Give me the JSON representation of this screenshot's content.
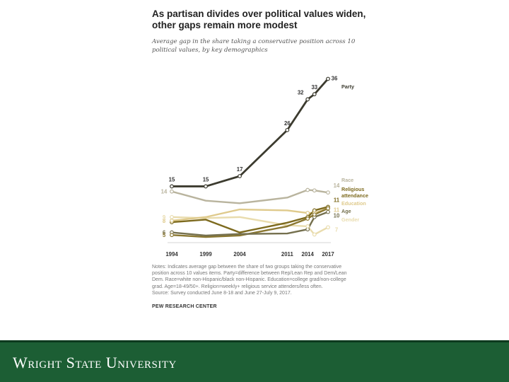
{
  "figure": {
    "title_line1": "As partisan divides over political values widen,",
    "title_line2": "other gaps remain more modest",
    "subtitle": "Average gap in the share taking a conservative position across 10 political values, by key demographics",
    "notes_line1": "Notes: Indicates average gap between the share of two groups taking the conservative",
    "notes_line2": "position across 10 values items. Party=difference between Rep/Lean Rep and Dem/Lean",
    "notes_line3": "Dem. Race=white non-Hispanic/black non-Hispanic. Education=college grad/non-college",
    "notes_line4": "grad. Age=18-49/50+. Religion=weekly+ religious service attenders/less often.",
    "notes_line5": "Source: Survey conducted June 8-18 and June 27-July 9, 2017.",
    "source_org": "PEW RESEARCH CENTER"
  },
  "footer": {
    "brand": "Wright State University",
    "bg_color": "#1c5e34"
  },
  "chart_data": {
    "type": "line",
    "title": "As partisan divides over political values widen, other gaps remain more modest",
    "subtitle": "Average gap in the share taking a conservative position across 10 political values, by key demographics",
    "x": [
      1994,
      1999,
      2004,
      2011,
      2014,
      2015,
      2017
    ],
    "x_tick_labels": [
      "1994",
      "1999",
      "2004",
      "2011",
      "2014",
      "2017"
    ],
    "x_ticks": [
      1994,
      1999,
      2004,
      2011,
      2014,
      2017
    ],
    "ylim": [
      0,
      38
    ],
    "grid": false,
    "series": [
      {
        "name": "Party",
        "color": "#3c3b2f",
        "values": [
          15,
          15,
          17,
          26,
          32,
          33,
          36
        ],
        "point_labels": [
          {
            "index": 0,
            "text": "15"
          },
          {
            "index": 1,
            "text": "15"
          },
          {
            "index": 2,
            "text": "17"
          },
          {
            "index": 3,
            "text": "26"
          },
          {
            "index": 4,
            "text": "32"
          },
          {
            "index": 5,
            "text": "33"
          },
          {
            "index": 6,
            "text": "36"
          }
        ],
        "start_label": "",
        "end_label": "",
        "legend_label": "Party"
      },
      {
        "name": "Race",
        "color": "#b9b49e",
        "values": [
          14,
          12.2,
          11.7,
          12.8,
          14.3,
          14.2,
          13.8
        ],
        "start_label": "14",
        "end_label": "14",
        "legend_label": "Race"
      },
      {
        "name": "Religious attendance",
        "color": "#7d6a1e",
        "values": [
          8,
          8.5,
          6,
          7.9,
          9,
          10.3,
          11
        ],
        "start_label": "",
        "end_label": "11",
        "legend_label": "Religious attendance"
      },
      {
        "name": "Education",
        "color": "#dfca8c",
        "values": [
          8.3,
          9,
          10.5,
          10.3,
          9.8,
          9.8,
          10.7
        ],
        "start_label": "8",
        "end_label": "11",
        "legend_label": "Education"
      },
      {
        "name": "Age",
        "color": "#75704e",
        "values": [
          6,
          5.4,
          5.7,
          5.8,
          6.6,
          9,
          10
        ],
        "start_label": "6",
        "end_label": "10",
        "legend_label": "Age"
      },
      {
        "name": "Gender",
        "color": "#e9dcae",
        "values": [
          9,
          8.8,
          9,
          7.4,
          7.2,
          5.6,
          7
        ],
        "start_label": "9",
        "end_label": "7",
        "legend_label": "Gender"
      },
      {
        "name": "Religion",
        "color": "#8a7731",
        "values": [
          5.5,
          5.1,
          5.4,
          7.2,
          8.7,
          9.5,
          10.7
        ],
        "start_label": "5",
        "end_label": "",
        "legend_label": ""
      }
    ]
  }
}
